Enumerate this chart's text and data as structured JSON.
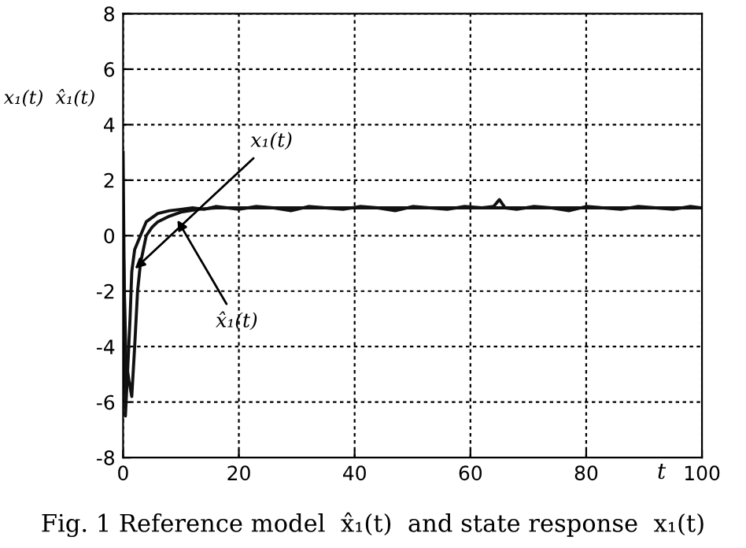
{
  "chart_data": {
    "type": "line",
    "xlabel": "t",
    "ylabel": "x₁(t)  x̂₁(t)",
    "xlim": [
      0,
      100
    ],
    "ylim": [
      -8,
      8
    ],
    "xticks": [
      0,
      20,
      40,
      60,
      80,
      100
    ],
    "yticks": [
      -8,
      -6,
      -4,
      -2,
      0,
      2,
      4,
      6,
      8
    ],
    "grid": true,
    "line_style": "solid",
    "marker": "none",
    "series": [
      {
        "color": "#111111",
        "x": [
          0,
          0.4,
          0.8,
          1.2,
          1.5,
          2,
          3,
          4,
          6,
          8,
          10,
          12,
          14,
          16,
          18,
          20,
          23,
          26,
          29,
          32,
          35,
          38,
          41,
          44,
          47,
          50,
          53,
          56,
          59,
          62,
          64,
          65,
          66,
          68,
          71,
          74,
          77,
          80,
          83,
          86,
          89,
          92,
          95,
          98,
          100
        ],
        "values": [
          3,
          -6.5,
          -4.8,
          -3,
          -1.3,
          -0.5,
          0,
          0.5,
          0.8,
          0.9,
          0.95,
          1.0,
          0.95,
          1.05,
          1.0,
          0.95,
          1.05,
          1.0,
          0.9,
          1.05,
          1.0,
          0.95,
          1.05,
          1.0,
          0.9,
          1.05,
          1.0,
          0.95,
          1.05,
          1.0,
          1.05,
          1.3,
          1.0,
          0.95,
          1.05,
          1.0,
          0.9,
          1.05,
          1.0,
          0.95,
          1.05,
          1.0,
          0.95,
          1.05,
          1.0
        ]
      },
      {
        "color": "#111111",
        "x": [
          0,
          0.5,
          1,
          1.5,
          2,
          2.5,
          3,
          4,
          5,
          6,
          8,
          10,
          13,
          16,
          20,
          30,
          40,
          50,
          60,
          70,
          80,
          90,
          100
        ],
        "values": [
          0,
          -4.5,
          -5.2,
          -5.8,
          -4,
          -2,
          -1,
          0,
          0.3,
          0.5,
          0.7,
          0.85,
          0.95,
          1.0,
          1.0,
          1.0,
          1.0,
          1.0,
          1.0,
          1.0,
          1.0,
          1.0,
          1.0
        ]
      }
    ],
    "annotations": [
      {
        "text": "x₁(t)",
        "x": 1.5,
        "y": -1.3
      },
      {
        "text": "x̂₁(t)",
        "x": 9,
        "y": 0.7
      },
      "Fig. 1 Reference model  x̂₁(t)  and state response  x₁(t)"
    ]
  }
}
